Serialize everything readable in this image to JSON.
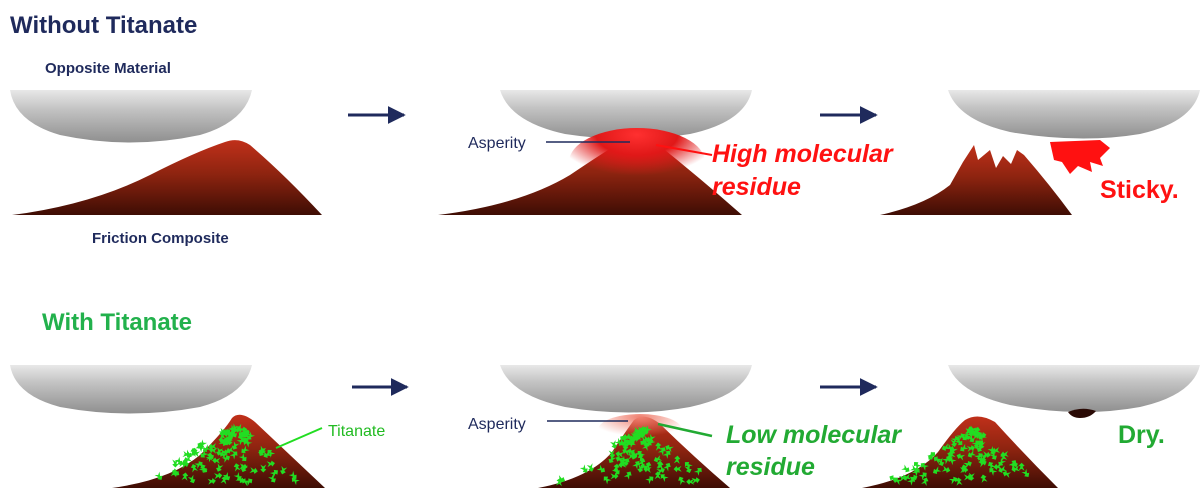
{
  "without": {
    "title": "Without Titanate",
    "opposite_label": "Opposite Material",
    "composite_label": "Friction Composite",
    "asperity_label": "Asperity",
    "residue_line1": "High molecular",
    "residue_line2": "residue",
    "result": "Sticky."
  },
  "with": {
    "title": "With Titanate",
    "titanate_label": "Titanate",
    "asperity_label": "Asperity",
    "residue_line1": "Low molecular",
    "residue_line2": "residue",
    "result": "Dry."
  },
  "colors": {
    "title_dark": "#1f2a5c",
    "title_green": "#22b14c",
    "red_text": "#ff1111",
    "green_text": "#22aa33",
    "composite_dark": "#5a1608",
    "composite_mid": "#9c2a10",
    "titanate_particle": "#22dd22",
    "pad_gray": "#bdbdbd"
  }
}
